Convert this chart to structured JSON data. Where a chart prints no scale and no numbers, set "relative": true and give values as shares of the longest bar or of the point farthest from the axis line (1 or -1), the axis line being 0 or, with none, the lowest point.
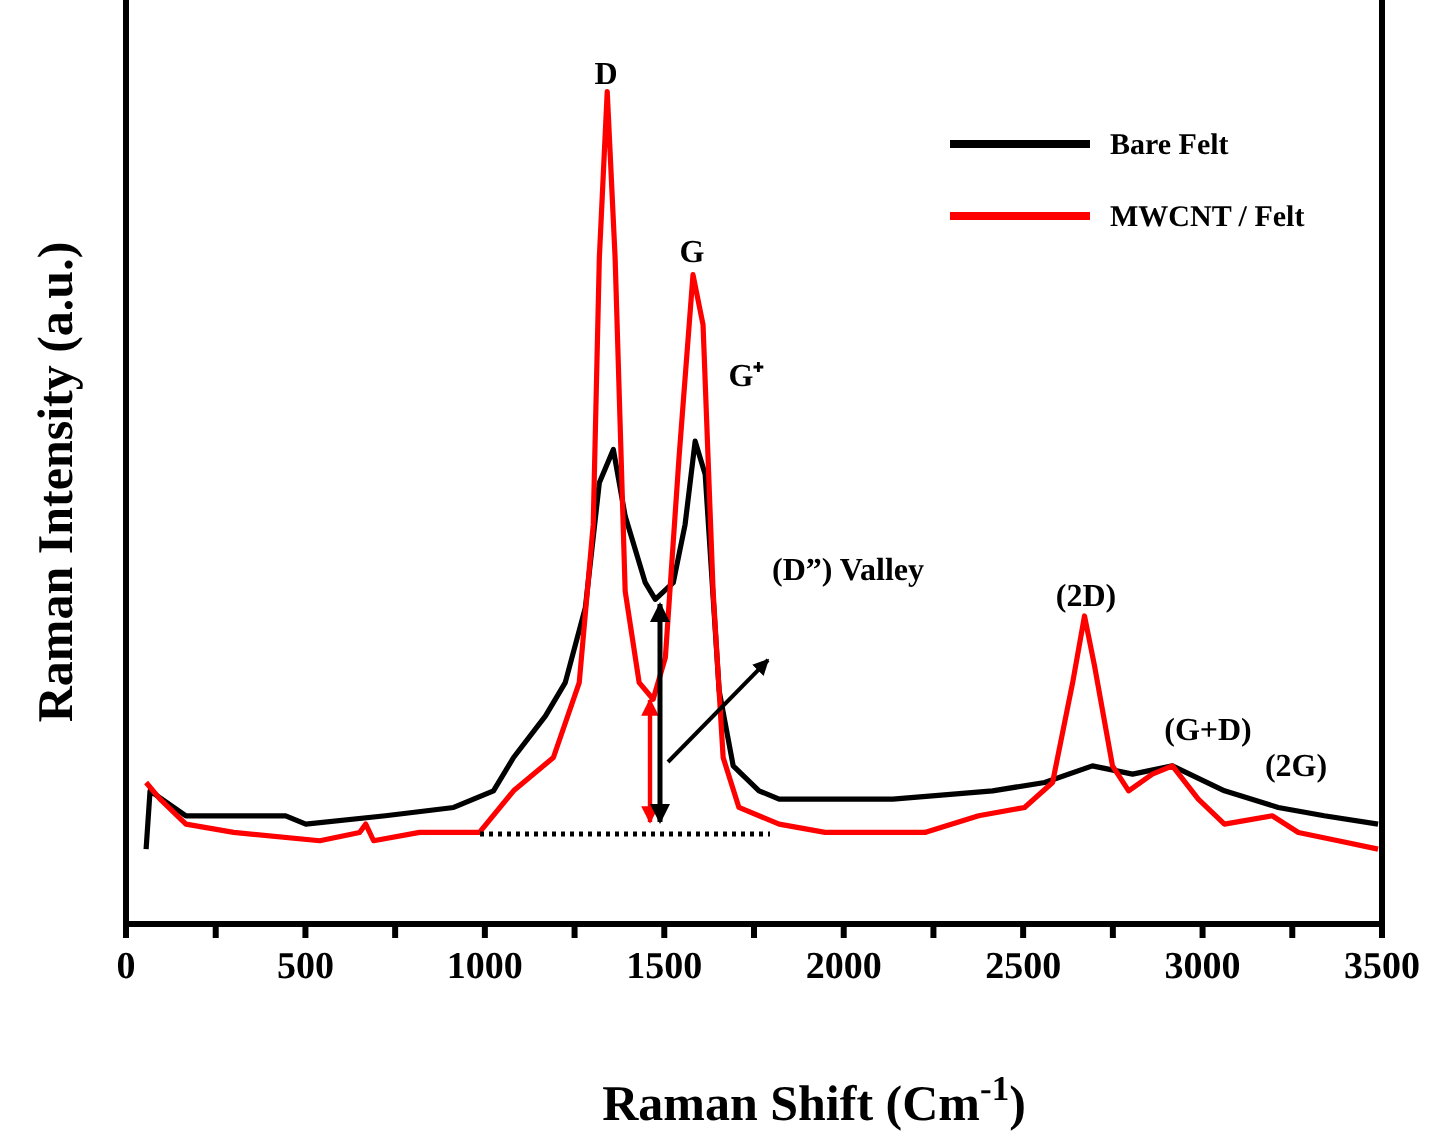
{
  "chart_data": {
    "type": "line",
    "relative": true,
    "xlabel": "Raman Shift (Cm$^{-1}$)",
    "ylabel": "Raman Intensity (a.u.)",
    "xlim": [
      0,
      3500
    ],
    "xticks": [
      0,
      {
        "value": 250,
        "label": null
      },
      500,
      {
        "value": 750,
        "label": null
      },
      1000,
      {
        "value": 1250,
        "label": null
      },
      1500,
      {
        "value": 1750,
        "label": null
      },
      2000,
      {
        "value": 2250,
        "label": null
      },
      2500,
      {
        "value": 2750,
        "label": null
      },
      3000,
      {
        "value": 3250,
        "label": null
      },
      3500
    ],
    "grid": false,
    "legend": "top right",
    "line_style": "solid",
    "marker": "none",
    "annotations": [
      "D",
      "G",
      "G⁺",
      "(D”) Valley",
      "(2D)",
      "(G+D)",
      "(2G)"
    ],
    "series": [
      {
        "name": "Bare Felt",
        "color": "#000000",
        "x": [
          56,
          67,
          167,
          445,
          501,
          723,
          913,
          1024,
          1080,
          1169,
          1224,
          1280,
          1319,
          1358,
          1391,
          1447,
          1475,
          1525,
          1558,
          1586,
          1614,
          1653,
          1692,
          1764,
          1820,
          2137,
          2415,
          2560,
          2693,
          2805,
          2916,
          3061,
          3211,
          3339,
          3489
        ],
        "values": [
          0.09,
          0.16,
          0.13,
          0.13,
          0.12,
          0.13,
          0.14,
          0.16,
          0.2,
          0.25,
          0.29,
          0.38,
          0.53,
          0.57,
          0.49,
          0.41,
          0.39,
          0.41,
          0.48,
          0.58,
          0.54,
          0.28,
          0.19,
          0.16,
          0.15,
          0.15,
          0.16,
          0.17,
          0.19,
          0.18,
          0.19,
          0.16,
          0.14,
          0.13,
          0.12
        ]
      },
      {
        "name": "MWCNT / Felt",
        "color": "#ff0000",
        "x": [
          56,
          95,
          167,
          300,
          540,
          651,
          668,
          690,
          818,
          985,
          1080,
          1191,
          1263,
          1302,
          1319,
          1341,
          1363,
          1391,
          1430,
          1469,
          1503,
          1541,
          1580,
          1608,
          1636,
          1664,
          1708,
          1820,
          1948,
          2226,
          2376,
          2504,
          2582,
          2638,
          2671,
          2699,
          2749,
          2794,
          2860,
          2916,
          2988,
          3061,
          3194,
          3267,
          3378,
          3489
        ],
        "values": [
          0.17,
          0.15,
          0.12,
          0.11,
          0.1,
          0.11,
          0.12,
          0.1,
          0.11,
          0.11,
          0.16,
          0.2,
          0.29,
          0.48,
          0.8,
          1,
          0.8,
          0.4,
          0.29,
          0.27,
          0.32,
          0.56,
          0.78,
          0.72,
          0.4,
          0.2,
          0.14,
          0.12,
          0.11,
          0.11,
          0.13,
          0.14,
          0.17,
          0.29,
          0.37,
          0.31,
          0.19,
          0.16,
          0.18,
          0.19,
          0.15,
          0.12,
          0.13,
          0.11,
          0.1,
          0.09
        ]
      }
    ]
  }
}
